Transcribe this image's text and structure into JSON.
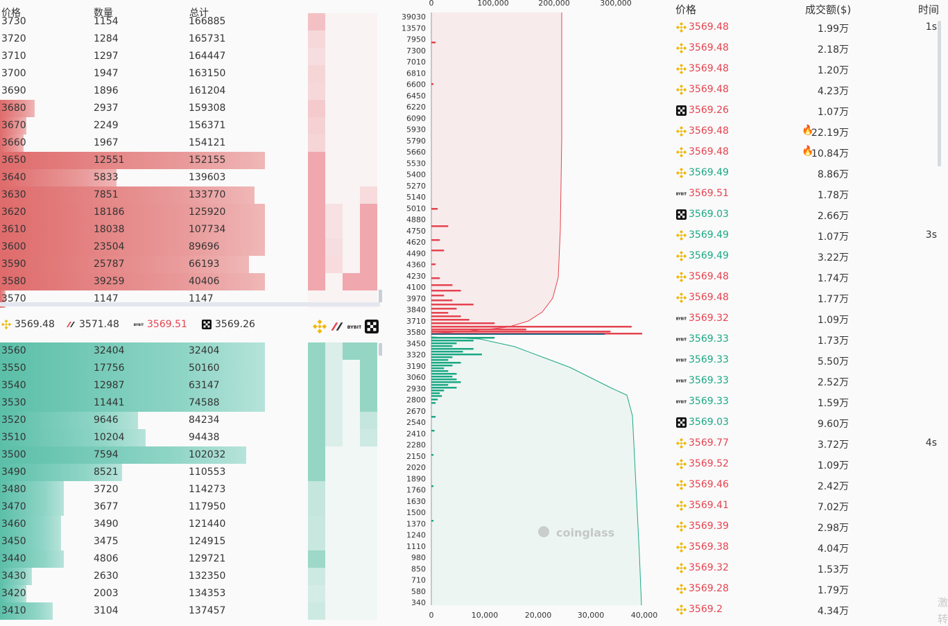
{
  "orderbook": {
    "header": {
      "price": "价格",
      "qty": "数量",
      "total": "总计"
    },
    "asks": [
      {
        "price": "3730",
        "qty": "1154",
        "total": "166885",
        "bar": 0,
        "mini": [
          0.6,
          0,
          0,
          0
        ]
      },
      {
        "price": "3720",
        "qty": "1284",
        "total": "165731",
        "bar": 0,
        "mini": [
          0.25,
          0,
          0,
          0
        ]
      },
      {
        "price": "3710",
        "qty": "1297",
        "total": "164447",
        "bar": 0,
        "mini": [
          0.15,
          0,
          0,
          0
        ]
      },
      {
        "price": "3700",
        "qty": "1947",
        "total": "163150",
        "bar": 0,
        "mini": [
          0.3,
          0,
          0,
          0
        ]
      },
      {
        "price": "3690",
        "qty": "1896",
        "total": "161204",
        "bar": 0,
        "mini": [
          0.25,
          0,
          0,
          0
        ]
      },
      {
        "price": "3680",
        "qty": "2937",
        "total": "159308",
        "bar": 0.13,
        "mini": [
          0.45,
          0,
          0,
          0
        ]
      },
      {
        "price": "3670",
        "qty": "2249",
        "total": "156371",
        "bar": 0.1,
        "mini": [
          0.35,
          0,
          0,
          0
        ]
      },
      {
        "price": "3660",
        "qty": "1967",
        "total": "154121",
        "bar": 0.09,
        "mini": [
          0.3,
          0,
          0,
          0
        ]
      },
      {
        "price": "3650",
        "qty": "12551",
        "total": "152155",
        "bar": 1.0,
        "mini": [
          1,
          0,
          0,
          0
        ]
      },
      {
        "price": "3640",
        "qty": "5833",
        "total": "139603",
        "bar": 0.44,
        "mini": [
          1,
          0,
          0,
          0
        ]
      },
      {
        "price": "3630",
        "qty": "7851",
        "total": "133770",
        "bar": 0.96,
        "mini": [
          1,
          0,
          0,
          0.2
        ]
      },
      {
        "price": "3620",
        "qty": "18186",
        "total": "125920",
        "bar": 1.0,
        "mini": [
          1,
          0.1,
          0,
          1
        ]
      },
      {
        "price": "3610",
        "qty": "18038",
        "total": "107734",
        "bar": 1.0,
        "mini": [
          1,
          0.1,
          0,
          1
        ]
      },
      {
        "price": "3600",
        "qty": "23504",
        "total": "89696",
        "bar": 1.0,
        "mini": [
          1,
          0.15,
          0,
          1
        ]
      },
      {
        "price": "3590",
        "qty": "25787",
        "total": "66193",
        "bar": 0.94,
        "mini": [
          1,
          0.2,
          0,
          1
        ]
      },
      {
        "price": "3580",
        "qty": "39259",
        "total": "40406",
        "bar": 1.0,
        "mini": [
          1,
          0,
          1,
          1
        ]
      },
      {
        "price": "3570",
        "qty": "1147",
        "total": "1147",
        "bar": 0.02,
        "mini": [
          0,
          0,
          0,
          0
        ]
      }
    ],
    "exchange_prices": [
      {
        "icon": "binance-icon",
        "price": "3569.48",
        "color": "#333333"
      },
      {
        "icon": "okx-icon",
        "price": "3571.48",
        "color": "#333333"
      },
      {
        "icon": "bybit-icon",
        "price": "3569.51",
        "color": "#e5434f"
      },
      {
        "icon": "gate-icon",
        "price": "3569.26",
        "color": "#333333"
      }
    ],
    "bids": [
      {
        "price": "3560",
        "qty": "32404",
        "total": "32404",
        "bar": 1.0,
        "mini": [
          1,
          0.1,
          1,
          1
        ]
      },
      {
        "price": "3550",
        "qty": "17756",
        "total": "50160",
        "bar": 1.0,
        "mini": [
          1,
          0.1,
          0,
          1
        ]
      },
      {
        "price": "3540",
        "qty": "12987",
        "total": "63147",
        "bar": 1.0,
        "mini": [
          1,
          0.1,
          0,
          1
        ]
      },
      {
        "price": "3530",
        "qty": "11441",
        "total": "74588",
        "bar": 1.0,
        "mini": [
          1,
          0.1,
          0,
          1
        ]
      },
      {
        "price": "3520",
        "qty": "9646",
        "total": "84234",
        "bar": 0.52,
        "mini": [
          1,
          0.1,
          0,
          0.4
        ]
      },
      {
        "price": "3510",
        "qty": "10204",
        "total": "94438",
        "bar": 0.55,
        "mini": [
          1,
          0.1,
          0,
          0.3
        ]
      },
      {
        "price": "3500",
        "qty": "7594",
        "total": "102032",
        "bar": 0.93,
        "mini": [
          1,
          0,
          0,
          0
        ]
      },
      {
        "price": "3490",
        "qty": "8521",
        "total": "110553",
        "bar": 0.46,
        "mini": [
          1,
          0,
          0,
          0
        ]
      },
      {
        "price": "3480",
        "qty": "3720",
        "total": "114273",
        "bar": 0.24,
        "mini": [
          0.4,
          0,
          0,
          0
        ]
      },
      {
        "price": "3470",
        "qty": "3677",
        "total": "117950",
        "bar": 0.24,
        "mini": [
          0.4,
          0,
          0,
          0
        ]
      },
      {
        "price": "3460",
        "qty": "3490",
        "total": "121440",
        "bar": 0.23,
        "mini": [
          0.35,
          0,
          0,
          0
        ]
      },
      {
        "price": "3450",
        "qty": "3475",
        "total": "124915",
        "bar": 0.23,
        "mini": [
          0.35,
          0,
          0,
          0
        ]
      },
      {
        "price": "3440",
        "qty": "4806",
        "total": "129721",
        "bar": 0.24,
        "mini": [
          0.9,
          0,
          0,
          0
        ]
      },
      {
        "price": "3430",
        "qty": "2630",
        "total": "132350",
        "bar": 0.12,
        "mini": [
          0.3,
          0,
          0,
          0
        ]
      },
      {
        "price": "3420",
        "qty": "2003",
        "total": "134353",
        "bar": 0.1,
        "mini": [
          0.2,
          0,
          0,
          0
        ]
      },
      {
        "price": "3410",
        "qty": "3104",
        "total": "137457",
        "bar": 0.2,
        "mini": [
          0.3,
          0,
          0,
          0
        ]
      }
    ]
  },
  "depth_chart": {
    "top_axis_labels": [
      "0",
      "100,000",
      "200,000",
      "300,000"
    ],
    "bottom_axis_labels": [
      "0",
      "10,000",
      "20,000",
      "30,000",
      "40,000"
    ],
    "y_labels": [
      "39030",
      "13570",
      "7950",
      "7300",
      "7010",
      "6810",
      "6600",
      "6450",
      "6220",
      "6090",
      "5930",
      "5790",
      "5660",
      "5530",
      "5400",
      "5270",
      "5140",
      "5010",
      "4880",
      "4750",
      "4620",
      "4490",
      "4360",
      "4230",
      "4100",
      "3970",
      "3840",
      "3710",
      "3580",
      "3450",
      "3320",
      "3190",
      "3060",
      "2930",
      "2800",
      "2670",
      "2540",
      "2410",
      "2280",
      "2150",
      "2020",
      "1890",
      "1760",
      "1630",
      "1500",
      "1370",
      "1240",
      "1110",
      "980",
      "850",
      "710",
      "580",
      "340"
    ],
    "watermark": "coinglass"
  },
  "trades": {
    "header": {
      "price": "价格",
      "amount": "成交额($)",
      "time": "时间"
    },
    "rows": [
      {
        "icon": "binance-icon",
        "price": "3569.48",
        "side": "sell",
        "amount": "1.99万",
        "fire": false,
        "time": "1s"
      },
      {
        "icon": "binance-icon",
        "price": "3569.48",
        "side": "sell",
        "amount": "2.18万",
        "fire": false,
        "time": ""
      },
      {
        "icon": "binance-icon",
        "price": "3569.48",
        "side": "sell",
        "amount": "1.20万",
        "fire": false,
        "time": ""
      },
      {
        "icon": "binance-icon",
        "price": "3569.48",
        "side": "sell",
        "amount": "4.23万",
        "fire": false,
        "time": ""
      },
      {
        "icon": "gate-icon",
        "price": "3569.26",
        "side": "sell",
        "amount": "1.07万",
        "fire": false,
        "time": ""
      },
      {
        "icon": "binance-icon",
        "price": "3569.48",
        "side": "sell",
        "amount": "22.19万",
        "fire": true,
        "time": ""
      },
      {
        "icon": "binance-icon",
        "price": "3569.48",
        "side": "sell",
        "amount": "10.84万",
        "fire": true,
        "time": ""
      },
      {
        "icon": "binance-icon",
        "price": "3569.49",
        "side": "buy",
        "amount": "8.86万",
        "fire": false,
        "time": ""
      },
      {
        "icon": "bybit-icon",
        "price": "3569.51",
        "side": "sell",
        "amount": "1.78万",
        "fire": false,
        "time": ""
      },
      {
        "icon": "gate-icon",
        "price": "3569.03",
        "side": "buy",
        "amount": "2.66万",
        "fire": false,
        "time": ""
      },
      {
        "icon": "binance-icon",
        "price": "3569.49",
        "side": "buy",
        "amount": "1.07万",
        "fire": false,
        "time": "3s"
      },
      {
        "icon": "binance-icon",
        "price": "3569.49",
        "side": "buy",
        "amount": "3.22万",
        "fire": false,
        "time": ""
      },
      {
        "icon": "binance-icon",
        "price": "3569.48",
        "side": "sell",
        "amount": "1.74万",
        "fire": false,
        "time": ""
      },
      {
        "icon": "binance-icon",
        "price": "3569.48",
        "side": "sell",
        "amount": "1.77万",
        "fire": false,
        "time": ""
      },
      {
        "icon": "bybit-icon",
        "price": "3569.32",
        "side": "sell",
        "amount": "1.09万",
        "fire": false,
        "time": ""
      },
      {
        "icon": "bybit-icon",
        "price": "3569.33",
        "side": "buy",
        "amount": "1.73万",
        "fire": false,
        "time": ""
      },
      {
        "icon": "bybit-icon",
        "price": "3569.33",
        "side": "buy",
        "amount": "5.50万",
        "fire": false,
        "time": ""
      },
      {
        "icon": "bybit-icon",
        "price": "3569.33",
        "side": "buy",
        "amount": "2.52万",
        "fire": false,
        "time": ""
      },
      {
        "icon": "bybit-icon",
        "price": "3569.33",
        "side": "buy",
        "amount": "1.59万",
        "fire": false,
        "time": ""
      },
      {
        "icon": "gate-icon",
        "price": "3569.03",
        "side": "buy",
        "amount": "9.60万",
        "fire": false,
        "time": ""
      },
      {
        "icon": "binance-icon",
        "price": "3569.77",
        "side": "sell",
        "amount": "3.72万",
        "fire": false,
        "time": "4s"
      },
      {
        "icon": "binance-icon",
        "price": "3569.52",
        "side": "sell",
        "amount": "1.09万",
        "fire": false,
        "time": ""
      },
      {
        "icon": "binance-icon",
        "price": "3569.46",
        "side": "sell",
        "amount": "2.42万",
        "fire": false,
        "time": ""
      },
      {
        "icon": "binance-icon",
        "price": "3569.41",
        "side": "sell",
        "amount": "7.02万",
        "fire": false,
        "time": ""
      },
      {
        "icon": "binance-icon",
        "price": "3569.39",
        "side": "sell",
        "amount": "2.98万",
        "fire": false,
        "time": ""
      },
      {
        "icon": "binance-icon",
        "price": "3569.38",
        "side": "sell",
        "amount": "4.04万",
        "fire": false,
        "time": ""
      },
      {
        "icon": "binance-icon",
        "price": "3569.32",
        "side": "sell",
        "amount": "1.53万",
        "fire": false,
        "time": ""
      },
      {
        "icon": "binance-icon",
        "price": "3569.28",
        "side": "sell",
        "amount": "1.79万",
        "fire": false,
        "time": ""
      },
      {
        "icon": "binance-icon",
        "price": "3569.2",
        "side": "sell",
        "amount": "4.34万",
        "fire": false,
        "time": ""
      }
    ],
    "watermark_lines": [
      "激",
      "转"
    ]
  },
  "colors": {
    "ask": "#e5434f",
    "bid": "#1aa883",
    "binance": "#f0b90b"
  }
}
